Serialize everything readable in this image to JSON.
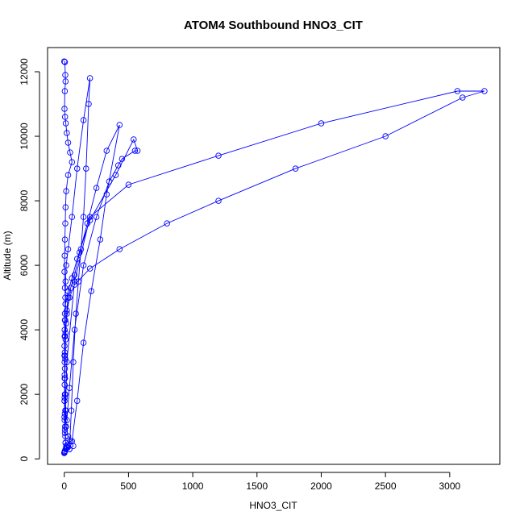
{
  "chart_data": {
    "type": "scatter",
    "title": "ATOM4 Southbound HNO3_CIT",
    "xlabel": "HNO3_CIT",
    "ylabel": "Altitude (m)",
    "xlim": [
      -130,
      3390
    ],
    "ylim": [
      -170,
      12750
    ],
    "xticks": [
      0,
      500,
      1000,
      1500,
      2000,
      2500,
      3000
    ],
    "yticks": [
      0,
      2000,
      4000,
      6000,
      8000,
      10000,
      12000
    ],
    "grid": false,
    "legend": "none",
    "series_color": "#0000ff",
    "series": [
      {
        "x": [
          0,
          5,
          8,
          10,
          4,
          2,
          6,
          12,
          20,
          30,
          45,
          60,
          30,
          15,
          10,
          8,
          5,
          3,
          2,
          5,
          10,
          8,
          6,
          4,
          5,
          3,
          2,
          4,
          6,
          8,
          10,
          15,
          25,
          40,
          55,
          70,
          90,
          110,
          130,
          150,
          170,
          190,
          200,
          150,
          100,
          60,
          30,
          15,
          10,
          8,
          5,
          3,
          2,
          3,
          5,
          8,
          12,
          20,
          40,
          80,
          150,
          250,
          350,
          420,
          450,
          550,
          570,
          540,
          400,
          200,
          100,
          60,
          30,
          10,
          5,
          3,
          2,
          3,
          5,
          8,
          15,
          30,
          60,
          100,
          150,
          210,
          280,
          330,
          430,
          330,
          250,
          180,
          120,
          80,
          50,
          30,
          20,
          15,
          10,
          8,
          5,
          3,
          2,
          5,
          20,
          80,
          200,
          500,
          1200,
          2000,
          3060,
          3270,
          3100,
          2500,
          1800,
          1200,
          800,
          430,
          200,
          80,
          40,
          20,
          10,
          5,
          3,
          2,
          3,
          5,
          10,
          20,
          40,
          70,
          50,
          30,
          20,
          10,
          5,
          3,
          2,
          1,
          0
        ],
        "y": [
          12320,
          12300,
          11900,
          11700,
          11400,
          10850,
          10600,
          10400,
          10100,
          9800,
          9500,
          9200,
          8800,
          8300,
          7800,
          7300,
          6800,
          6300,
          5800,
          5300,
          4800,
          4300,
          3800,
          3300,
          2800,
          2300,
          1800,
          1400,
          1000,
          700,
          500,
          400,
          350,
          300,
          1500,
          3000,
          4500,
          5500,
          6500,
          7500,
          9000,
          11000,
          11800,
          10500,
          9000,
          7500,
          6500,
          6000,
          5500,
          5000,
          4500,
          4000,
          3500,
          3000,
          2500,
          2000,
          1500,
          1200,
          2200,
          4000,
          6000,
          7500,
          8600,
          9100,
          9300,
          9550,
          9550,
          9900,
          8800,
          7400,
          6200,
          5600,
          5200,
          4800,
          4300,
          3800,
          3200,
          2600,
          2000,
          1500,
          1000,
          700,
          550,
          1800,
          3600,
          5200,
          6800,
          8200,
          10350,
          9550,
          8400,
          7300,
          6400,
          5700,
          5300,
          5000,
          4600,
          4200,
          3700,
          3100,
          2500,
          1900,
          1300,
          900,
          3000,
          5500,
          7500,
          8500,
          9400,
          10400,
          11400,
          11400,
          11200,
          10000,
          9000,
          8000,
          7300,
          6500,
          5900,
          5400,
          5000,
          4500,
          3900,
          3200,
          2500,
          1800,
          1200,
          800,
          500,
          350,
          300,
          400,
          550,
          450,
          380,
          300,
          250,
          220,
          200,
          190,
          180
        ]
      }
    ]
  }
}
